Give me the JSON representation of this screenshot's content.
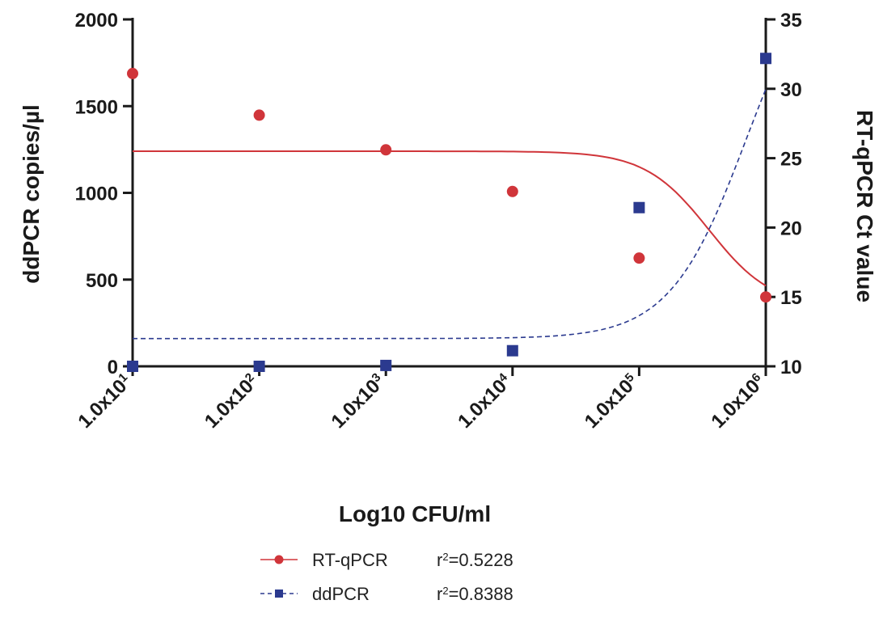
{
  "chart_data": {
    "type": "scatter",
    "xlabel": "Log10 CFU/ml",
    "ylabel_left": "ddPCR copies/µl",
    "ylabel_right": "RT-qPCR Ct value",
    "xscale": "log",
    "x": [
      10,
      100,
      1000,
      10000,
      100000,
      1000000
    ],
    "x_tick_labels": [
      {
        "base": "1.0x10",
        "exp": "1"
      },
      {
        "base": "1.0x10",
        "exp": "2"
      },
      {
        "base": "1.0x10",
        "exp": "3"
      },
      {
        "base": "1.0x10",
        "exp": "4"
      },
      {
        "base": "1.0x10",
        "exp": "5"
      },
      {
        "base": "1.0x10",
        "exp": "6"
      }
    ],
    "ylim_left": [
      0,
      2000
    ],
    "yticks_left": [
      "0",
      "500",
      "1000",
      "1500",
      "2000"
    ],
    "ylim_right": [
      10,
      35
    ],
    "yticks_right": [
      "10",
      "15",
      "20",
      "25",
      "30",
      "35"
    ],
    "series": [
      {
        "name": "RT-qPCR",
        "axis": "right",
        "marker": "circle",
        "color": "#d0353a",
        "line_style": "solid",
        "values": [
          31.1,
          28.1,
          25.6,
          22.6,
          17.8,
          15.0
        ],
        "r2_label": "r",
        "r2_sup": "2",
        "r2_value": "=0.5228"
      },
      {
        "name": "ddPCR",
        "axis": "left",
        "marker": "square",
        "color": "#2b3a8f",
        "line_style": "dashed",
        "values": [
          0,
          0,
          5,
          90,
          915,
          1775
        ],
        "r2_label": "r",
        "r2_sup": "2",
        "r2_value": "=0.8388"
      }
    ],
    "legend_placement": "bottom-center"
  }
}
